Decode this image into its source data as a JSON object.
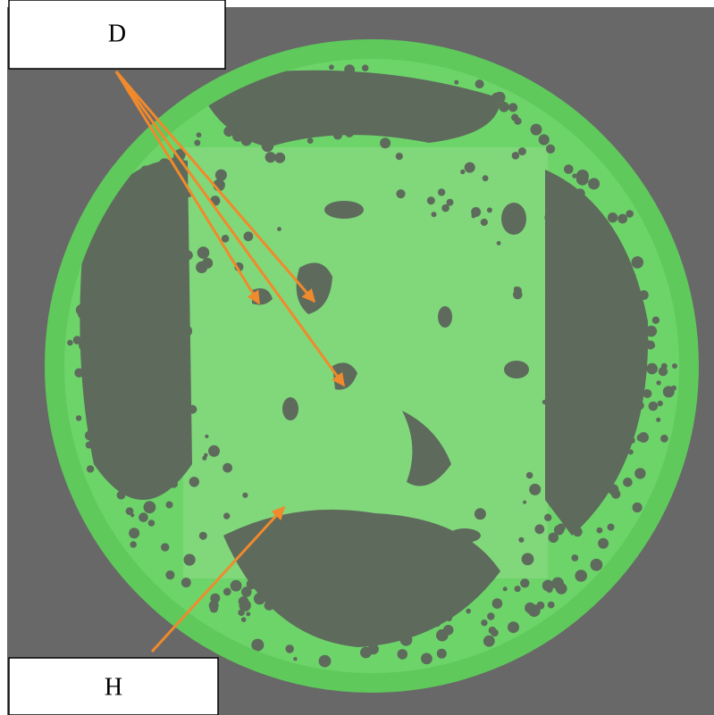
{
  "annotations": {
    "top": "D",
    "bottom": "H"
  }
}
